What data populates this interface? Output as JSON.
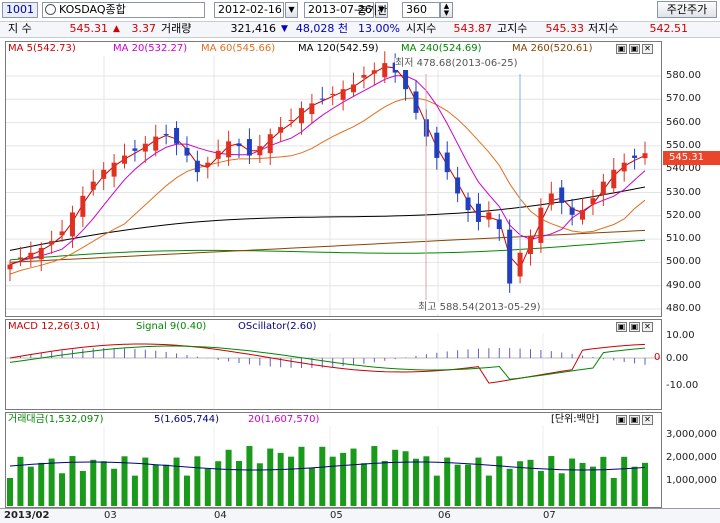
{
  "toolbar": {
    "code": "1001",
    "market_name": "KOSDAQ종합",
    "search_icon": "search-icon",
    "start_date": "2012-02-16",
    "end_date": "2013-07-26",
    "period_label": "총기간",
    "period_value": "360",
    "period_type_button": "주간주가"
  },
  "info_bar": {
    "index_label": "지 수",
    "index_value": "545.31",
    "change_arrow": "▲",
    "change_value": "3.37",
    "volume_label": "거래량",
    "volume_value": "321,416",
    "volume_arrow": "▼",
    "volume_change": "48,028 천",
    "volume_pct": "13.00%",
    "open_label": "시지수",
    "open_value": "543.87",
    "high_label": "고지수",
    "high_value": "545.33",
    "low_label": "저지수",
    "low_value": "542.51"
  },
  "price_panel": {
    "legend": [
      {
        "text": "MA 5(542.73)",
        "color": "#cc0000"
      },
      {
        "text": "MA 20(532.27)",
        "color": "#cc00cc"
      },
      {
        "text": "MA 60(545.66)",
        "color": "#e07020"
      },
      {
        "text": "MA 120(542.59)",
        "color": "#000000"
      },
      {
        "text": "MA 240(524.69)",
        "color": "#008800"
      },
      {
        "text": "MA 260(520.61)",
        "color": "#884400"
      }
    ],
    "annotation_low": "최저 478.68(2013-06-25)",
    "annotation_high": "최고 588.54(2013-05-29)",
    "current_price_tag": "545.31",
    "y_ticks": [
      "580.00",
      "570.00",
      "560.00",
      "550.00",
      "540.00",
      "530.00",
      "520.00",
      "510.00",
      "500.00",
      "490.00",
      "480.00"
    ]
  },
  "macd_panel": {
    "legend": [
      {
        "text": "MACD 12,26(3.01)",
        "color": "#cc0000"
      },
      {
        "text": "Signal 9(0.40)",
        "color": "#008800"
      },
      {
        "text": "OScillator(2.60)",
        "color": "#000080"
      }
    ],
    "y_ticks": [
      "10.00",
      "0.00",
      "-10.00"
    ],
    "zero_tag": "0"
  },
  "volume_panel": {
    "legend": [
      {
        "text": "거래대금(1,532,097)",
        "color": "#008800"
      },
      {
        "text": "5(1,605,744)",
        "color": "#000080"
      },
      {
        "text": "20(1,607,570)",
        "color": "#cc00cc"
      }
    ],
    "unit_label": "[단위:백만]",
    "y_ticks": [
      "3,000,000",
      "2,000,000",
      "1,000,000"
    ]
  },
  "x_axis": {
    "labels": [
      "2013/02",
      "03",
      "04",
      "05",
      "06",
      "07"
    ]
  },
  "panel_controls": [
    "▣",
    "▣",
    "✕"
  ],
  "chart_data": {
    "type": "candlestick",
    "y_range": [
      478,
      586
    ],
    "weekly_closes": [
      498,
      501,
      503,
      505,
      508,
      512,
      520,
      527,
      533,
      538,
      541,
      544,
      546,
      549,
      552,
      553,
      549,
      544,
      537,
      541,
      546,
      550,
      548,
      544,
      548,
      553,
      556,
      559,
      564,
      566,
      568,
      570,
      572,
      574,
      578,
      580,
      583,
      579,
      572,
      562,
      552,
      543,
      537,
      528,
      521,
      516,
      520,
      513,
      490,
      503,
      510,
      522,
      528,
      524,
      519,
      521,
      526,
      533,
      538,
      541,
      543,
      545
    ]
  }
}
